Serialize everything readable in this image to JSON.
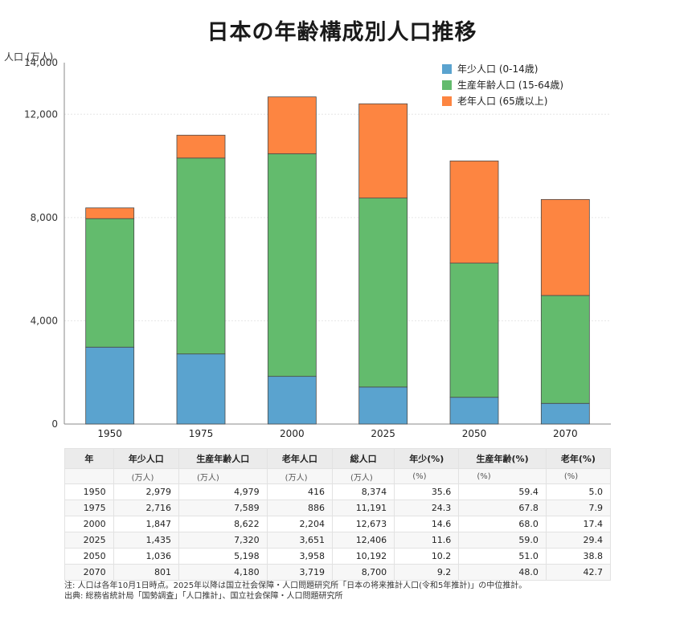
{
  "chart_data": {
    "type": "bar",
    "stacked": true,
    "title": "日本の年齢構成別人口推移",
    "ylabel": "人口 (万人)",
    "categories": [
      "1950",
      "1975",
      "2000",
      "2025",
      "2050",
      "2070"
    ],
    "ylim": [
      0,
      14000
    ],
    "yticks": [
      0,
      4000,
      8000,
      12000,
      14000
    ],
    "ytick_labels": [
      "0",
      "4,000",
      "8,000",
      "12,000",
      "14,000"
    ],
    "grid": true,
    "legend_position": "top-right",
    "series": [
      {
        "name": "年少人口 (0-14歳)",
        "color": "#5aa3cf",
        "values": [
          2979,
          2716,
          1847,
          1435,
          1036,
          801
        ]
      },
      {
        "name": "生産年齢人口 (15-64歳)",
        "color": "#63bb6d",
        "values": [
          4979,
          7589,
          8622,
          7320,
          5198,
          4180
        ]
      },
      {
        "name": "老年人口 (65歳以上)",
        "color": "#fd8541",
        "values": [
          416,
          886,
          2204,
          3651,
          3958,
          3719
        ]
      }
    ]
  },
  "table": {
    "headers": [
      "年",
      "年少人口",
      "生産年齢人口",
      "老年人口",
      "総人口",
      "年少(%)",
      "生産年齢(%)",
      "老年(%)"
    ],
    "units": [
      "",
      "(万人)",
      "(万人)",
      "(万人)",
      "(万人)",
      "(%)",
      "(%)",
      "(%)"
    ],
    "rows": [
      [
        "1950",
        "2,979",
        "4,979",
        "416",
        "8,374",
        "35.6",
        "59.4",
        "5.0"
      ],
      [
        "1975",
        "2,716",
        "7,589",
        "886",
        "11,191",
        "24.3",
        "67.8",
        "7.9"
      ],
      [
        "2000",
        "1,847",
        "8,622",
        "2,204",
        "12,673",
        "14.6",
        "68.0",
        "17.4"
      ],
      [
        "2025",
        "1,435",
        "7,320",
        "3,651",
        "12,406",
        "11.6",
        "59.0",
        "29.4"
      ],
      [
        "2050",
        "1,036",
        "5,198",
        "3,958",
        "10,192",
        "10.2",
        "51.0",
        "38.8"
      ],
      [
        "2070",
        "801",
        "4,180",
        "3,719",
        "8,700",
        "9.2",
        "48.0",
        "42.7"
      ]
    ]
  },
  "notes": {
    "note": "注: 人口は各年10月1日時点。2025年以降は国立社会保障・人口問題研究所「日本の将来推計人口(令和5年推計)」の中位推計。",
    "source": "出典: 総務省統計局「国勢調査」「人口推計」、国立社会保障・人口問題研究所"
  }
}
